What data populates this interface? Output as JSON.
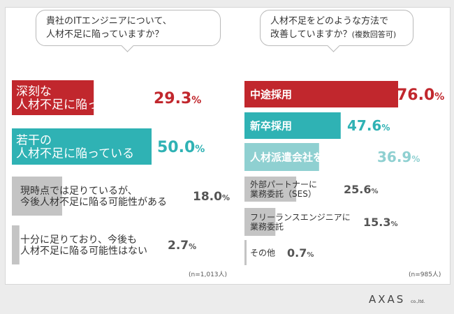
{
  "colors": {
    "red": "#c1272d",
    "teal": "#2fb2b4",
    "lightteal": "#8fd0d1",
    "gray": "#c4c4c4",
    "text": "#333333",
    "darkgray": "#555555"
  },
  "questions": {
    "q1": [
      "貴社のITエンジニアについて、",
      "人材不足に陥っていますか？"
    ],
    "q2_line1": "人材不足をどのような方法で",
    "q2_line2": "改善していますか？",
    "q2_note": "(複数回答可)"
  },
  "logo": {
    "text": "AXAS",
    "suffix": "co.,ltd."
  },
  "chart_data": [
    {
      "type": "bar",
      "categories": [
        "深刻な\n人材不足に陥っている",
        "若干の\n人材不足に陥っている",
        "現時点では足りているが、\n今後人材不足に陥る可能性がある",
        "十分に足りており、今後も\n人材不足に陥る可能性はない"
      ],
      "values": [
        29.3,
        50.0,
        18.0,
        2.7
      ],
      "value_labels": [
        "29.3%",
        "50.0%",
        "18.0%",
        "2.7%"
      ],
      "note": "(n=1,013人)"
    },
    {
      "type": "bar",
      "categories": [
        "中途採用",
        "新卒採用",
        "人材派遣会社を活用",
        "外部パートナーに\n業務委託（SES）",
        "フリーランスエンジニアに\n業務委託",
        "その他"
      ],
      "values": [
        76.0,
        47.6,
        36.9,
        25.6,
        15.3,
        0.7
      ],
      "value_labels": [
        "76.0%",
        "47.6%",
        "36.9%",
        "25.6%",
        "15.3%",
        "0.7%"
      ],
      "note": "(n=985人)"
    }
  ]
}
